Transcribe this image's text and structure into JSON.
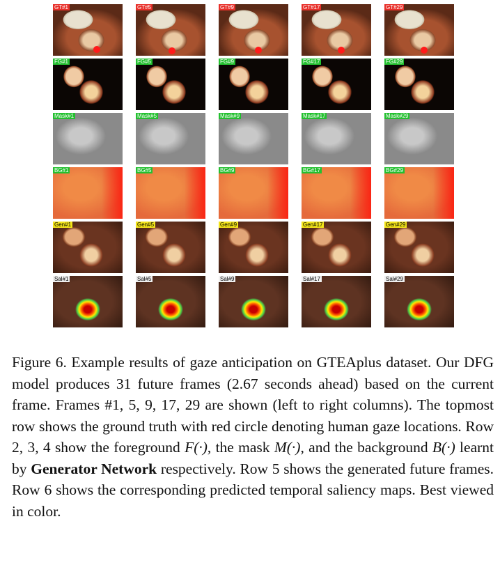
{
  "figure": {
    "rows": [
      {
        "id": "gt",
        "labels": [
          "GT#1",
          "GT#5",
          "GT#9",
          "GT#17",
          "GT#29"
        ],
        "tag_color": "#e8302a",
        "tag_text_color": "#ffffff"
      },
      {
        "id": "fg",
        "labels": [
          "FG#1",
          "FG#5",
          "FG#9",
          "FG#17",
          "FG#29"
        ],
        "tag_color": "#24c030",
        "tag_text_color": "#ffffff"
      },
      {
        "id": "mask",
        "labels": [
          "Mask#1",
          "Mask#5",
          "Mask#9",
          "Mask#17",
          "Mask#29"
        ],
        "tag_color": "#24c030",
        "tag_text_color": "#ffffff"
      },
      {
        "id": "bg",
        "labels": [
          "BG#1",
          "BG#5",
          "BG#9",
          "BG#17",
          "BG#29"
        ],
        "tag_color": "#24c030",
        "tag_text_color": "#ffffff"
      },
      {
        "id": "gen",
        "labels": [
          "Gen#1",
          "Gen#5",
          "Gen#9",
          "Gen#17",
          "Gen#29"
        ],
        "tag_color": "#f2e31a",
        "tag_text_color": "#000000"
      },
      {
        "id": "sal",
        "labels": [
          "Sal#1",
          "Sal#5",
          "Sal#9",
          "Sal#17",
          "Sal#29"
        ],
        "tag_color": "#f0f0f0",
        "tag_text_color": "#000000"
      }
    ]
  },
  "caption": {
    "fig_label": "Figure 6.",
    "part1": " Example results of gaze anticipation on GTEAplus dataset. Our DFG model produces 31 future frames (2.67 seconds ahead) based on the current frame. Frames #1, 5, 9, 17, 29 are shown (left to right columns). The topmost row shows the ground truth with red circle denoting human gaze locations. Row 2, 3, 4 show the foreground ",
    "F": "F(·)",
    "part2": ", the mask ",
    "M": "M(·)",
    "part3": ", and the background ",
    "B": "B(·)",
    "part4": " learnt by ",
    "bold": "Generator Network",
    "part5": " respectively. Row 5 shows the generated future frames. Row 6 shows the corresponding predicted temporal saliency maps. Best viewed in color."
  }
}
